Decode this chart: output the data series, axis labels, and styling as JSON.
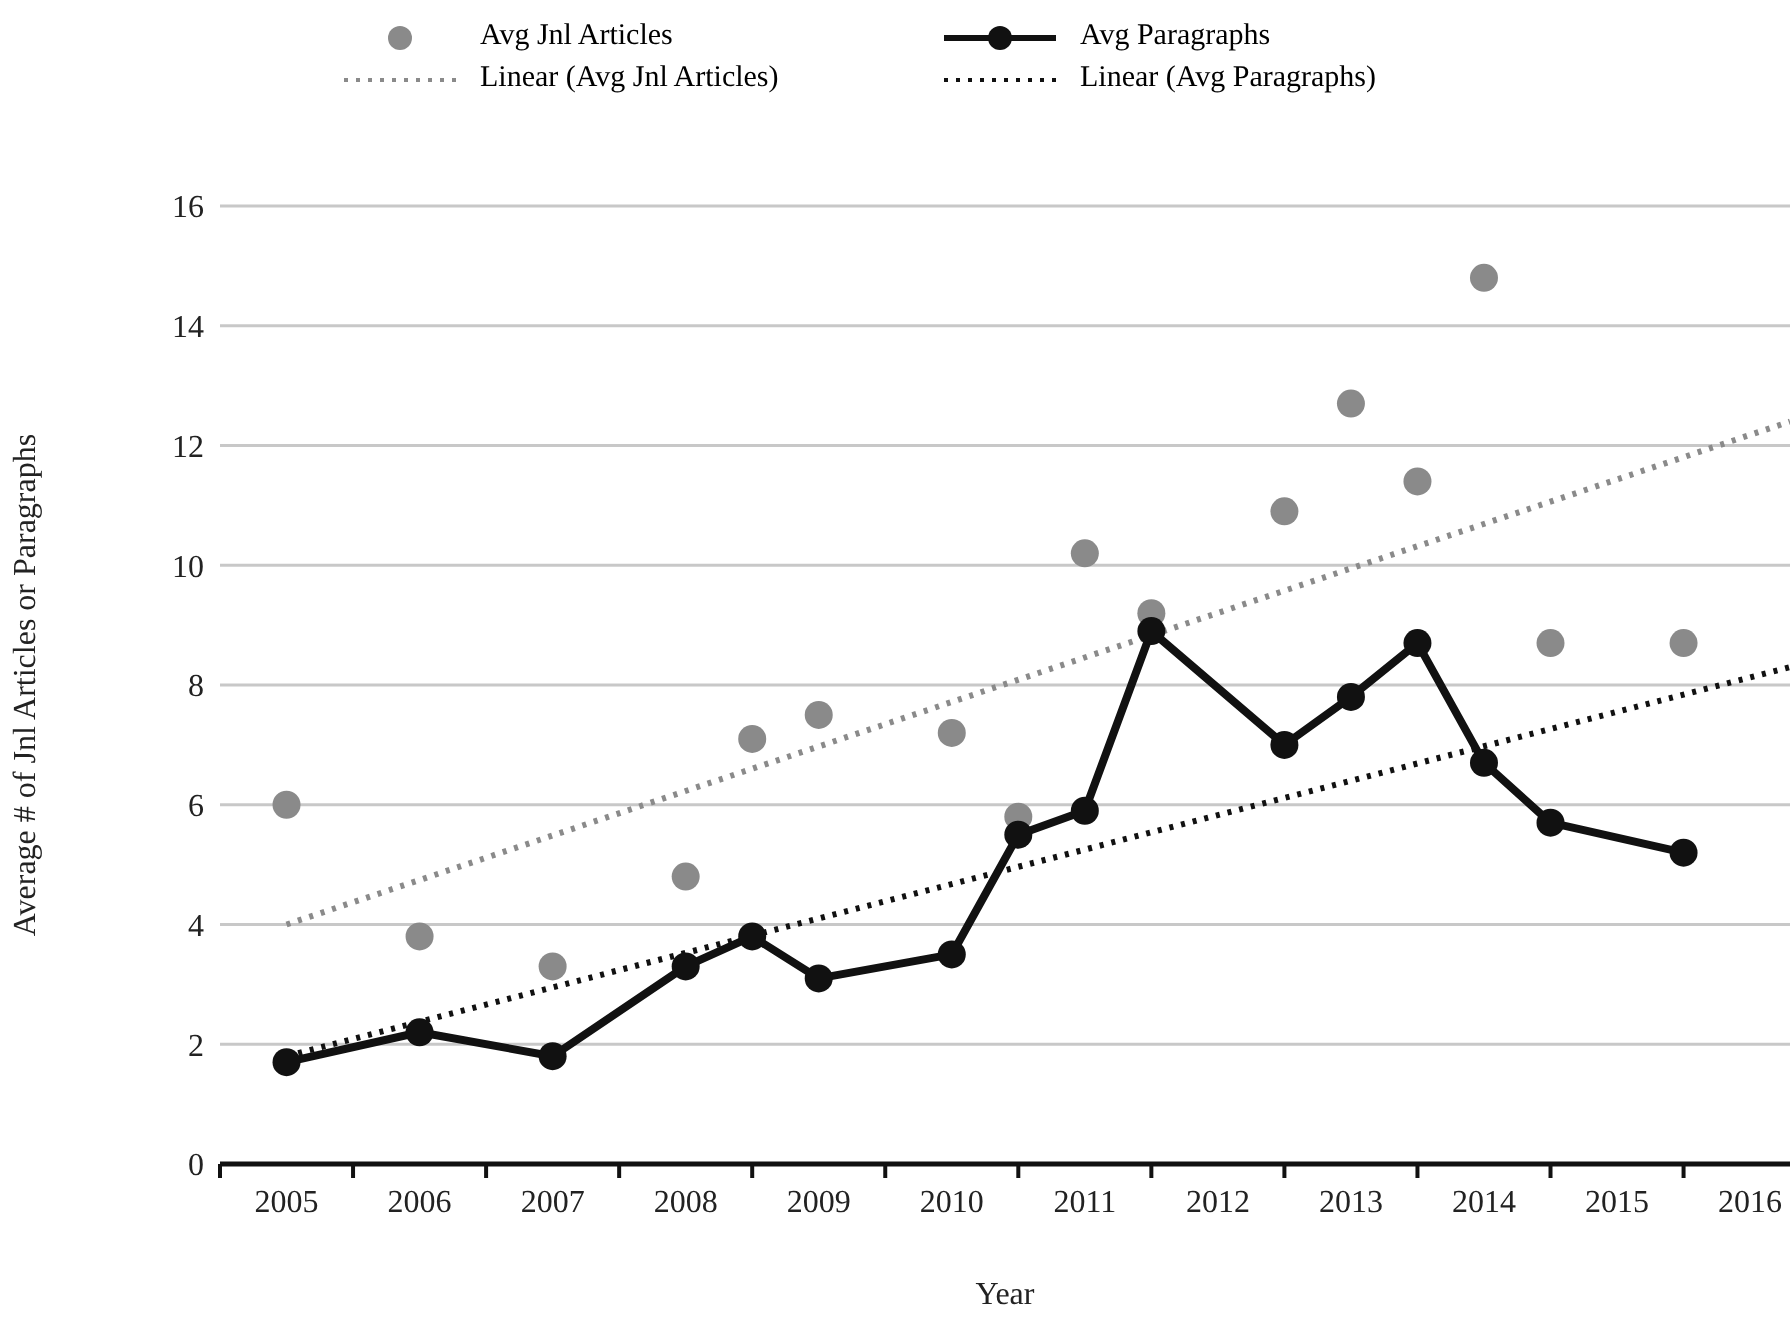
{
  "chart_data": {
    "type": "line",
    "xlabel": "Year",
    "ylabel": "Average # of Jnl Articles or Paragraphs",
    "xlim": [
      2005,
      2016.8
    ],
    "xticks": [
      {
        "value": 2005,
        "label": null
      },
      {
        "value": 2005.5,
        "label": "2005"
      },
      {
        "value": 2006,
        "label": null
      },
      {
        "value": 2006.5,
        "label": "2006"
      },
      {
        "value": 2007,
        "label": null
      },
      {
        "value": 2007.5,
        "label": "2007"
      },
      {
        "value": 2008,
        "label": null
      },
      {
        "value": 2008.5,
        "label": "2008"
      },
      {
        "value": 2009,
        "label": null
      },
      {
        "value": 2009.5,
        "label": "2009"
      },
      {
        "value": 2010,
        "label": null
      },
      {
        "value": 2010.5,
        "label": "2010"
      },
      {
        "value": 2011,
        "label": null
      },
      {
        "value": 2011.5,
        "label": "2011"
      },
      {
        "value": 2012,
        "label": null
      },
      {
        "value": 2012.5,
        "label": "2012"
      },
      {
        "value": 2013,
        "label": null
      },
      {
        "value": 2013.5,
        "label": "2013"
      },
      {
        "value": 2014,
        "label": null
      },
      {
        "value": 2014.5,
        "label": "2014"
      },
      {
        "value": 2015,
        "label": null
      },
      {
        "value": 2015.5,
        "label": "2015"
      },
      {
        "value": 2016,
        "label": null
      },
      {
        "value": 2016.5,
        "label": "2016"
      }
    ],
    "ylim": [
      0,
      16
    ],
    "yticks": [
      0,
      2,
      4,
      6,
      8,
      10,
      12,
      14,
      16
    ],
    "grid": "y",
    "legend": "top",
    "series": [
      {
        "name": "Avg Jnl Articles",
        "type": "scatter",
        "marker": "circle",
        "color": "#8a8a8a",
        "x": [
          2005.5,
          2006.5,
          2007.5,
          2008.5,
          2009,
          2009.5,
          2010.5,
          2011,
          2011.5,
          2012,
          2013,
          2013.5,
          2014,
          2014.5,
          2015,
          2016
        ],
        "values": [
          6.0,
          3.8,
          3.3,
          4.8,
          7.1,
          7.5,
          7.2,
          5.8,
          10.2,
          9.2,
          10.9,
          12.7,
          11.4,
          14.8,
          8.7,
          8.7
        ]
      },
      {
        "name": "Avg Paragraphs",
        "marker": "circle",
        "line_style": "solid",
        "color": "#111111",
        "x": [
          2005.5,
          2006.5,
          2007.5,
          2008.5,
          2009,
          2009.5,
          2010.5,
          2011,
          2011.5,
          2012,
          2013,
          2013.5,
          2014,
          2014.5,
          2015,
          2016
        ],
        "values": [
          1.7,
          2.2,
          1.8,
          3.3,
          3.8,
          3.1,
          3.5,
          5.5,
          5.9,
          8.9,
          7.0,
          7.8,
          8.7,
          6.7,
          5.7,
          5.2
        ]
      },
      {
        "name": "Linear (Avg Jnl Articles)",
        "marker": "none",
        "line_style": "dotted",
        "color": "#8a8a8a",
        "x": [
          2005.5,
          2016.8
        ],
        "values": [
          4.0,
          12.4
        ]
      },
      {
        "name": "Linear (Avg Paragraphs)",
        "marker": "none",
        "line_style": "dotted",
        "color": "#111111",
        "x": [
          2005.5,
          2016.8
        ],
        "values": [
          1.8,
          8.3
        ]
      }
    ]
  }
}
